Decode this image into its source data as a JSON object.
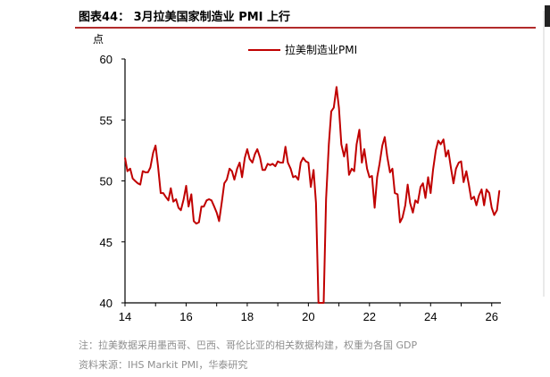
{
  "header": {
    "title": "图表44： 3月拉美国家制造业 PMI 上行"
  },
  "chart_data": {
    "type": "line",
    "ylabel": "点",
    "ylim": [
      40,
      60
    ],
    "yticks": [
      "60",
      "55",
      "50",
      "45",
      "40"
    ],
    "xlim": [
      2014,
      2026.3
    ],
    "xticks": [
      "14",
      "16",
      "18",
      "20",
      "22",
      "24",
      "26"
    ],
    "legend": "top-center",
    "series": [
      {
        "name": "拉美制造业PMI",
        "color": "#c00000",
        "points": [
          [
            2014.0,
            51.9
          ],
          [
            2014.08,
            50.8
          ],
          [
            2014.17,
            51.0
          ],
          [
            2014.25,
            50.2
          ],
          [
            2014.33,
            50.0
          ],
          [
            2014.42,
            49.8
          ],
          [
            2014.5,
            49.7
          ],
          [
            2014.58,
            50.8
          ],
          [
            2014.67,
            50.7
          ],
          [
            2014.75,
            50.7
          ],
          [
            2014.83,
            51.1
          ],
          [
            2014.92,
            52.3
          ],
          [
            2015.0,
            52.9
          ],
          [
            2015.08,
            51.2
          ],
          [
            2015.17,
            49.0
          ],
          [
            2015.25,
            49.0
          ],
          [
            2015.33,
            48.7
          ],
          [
            2015.42,
            48.4
          ],
          [
            2015.5,
            49.4
          ],
          [
            2015.58,
            48.3
          ],
          [
            2015.67,
            48.5
          ],
          [
            2015.75,
            47.8
          ],
          [
            2015.83,
            47.6
          ],
          [
            2015.92,
            48.5
          ],
          [
            2016.0,
            49.6
          ],
          [
            2016.08,
            47.9
          ],
          [
            2016.17,
            48.9
          ],
          [
            2016.25,
            46.7
          ],
          [
            2016.33,
            46.5
          ],
          [
            2016.42,
            46.6
          ],
          [
            2016.5,
            47.9
          ],
          [
            2016.58,
            47.9
          ],
          [
            2016.67,
            48.4
          ],
          [
            2016.75,
            48.5
          ],
          [
            2016.83,
            48.4
          ],
          [
            2016.92,
            47.9
          ],
          [
            2017.0,
            47.4
          ],
          [
            2017.08,
            46.7
          ],
          [
            2017.17,
            48.3
          ],
          [
            2017.25,
            49.8
          ],
          [
            2017.33,
            50.1
          ],
          [
            2017.42,
            51.0
          ],
          [
            2017.5,
            50.8
          ],
          [
            2017.58,
            50.1
          ],
          [
            2017.67,
            51.0
          ],
          [
            2017.75,
            51.5
          ],
          [
            2017.83,
            50.3
          ],
          [
            2017.92,
            51.9
          ],
          [
            2018.0,
            52.6
          ],
          [
            2018.08,
            51.8
          ],
          [
            2018.17,
            51.5
          ],
          [
            2018.25,
            52.2
          ],
          [
            2018.33,
            52.6
          ],
          [
            2018.42,
            51.9
          ],
          [
            2018.5,
            50.9
          ],
          [
            2018.58,
            50.9
          ],
          [
            2018.67,
            51.4
          ],
          [
            2018.75,
            51.3
          ],
          [
            2018.83,
            51.4
          ],
          [
            2018.92,
            51.2
          ],
          [
            2019.0,
            51.6
          ],
          [
            2019.08,
            51.5
          ],
          [
            2019.17,
            51.5
          ],
          [
            2019.25,
            52.8
          ],
          [
            2019.33,
            51.5
          ],
          [
            2019.42,
            51.0
          ],
          [
            2019.5,
            50.3
          ],
          [
            2019.58,
            50.4
          ],
          [
            2019.67,
            50.1
          ],
          [
            2019.75,
            51.5
          ],
          [
            2019.83,
            51.9
          ],
          [
            2019.92,
            51.6
          ],
          [
            2020.0,
            51.5
          ],
          [
            2020.08,
            49.5
          ],
          [
            2020.17,
            50.9
          ],
          [
            2020.25,
            48.2
          ],
          [
            2020.33,
            40.0
          ],
          [
            2020.42,
            40.0
          ],
          [
            2020.5,
            40.0
          ],
          [
            2020.58,
            48.5
          ],
          [
            2020.67,
            53.0
          ],
          [
            2020.75,
            55.7
          ],
          [
            2020.83,
            56.0
          ],
          [
            2020.92,
            57.7
          ],
          [
            2021.0,
            56.0
          ],
          [
            2021.08,
            53.0
          ],
          [
            2021.17,
            52.0
          ],
          [
            2021.25,
            53.0
          ],
          [
            2021.33,
            50.5
          ],
          [
            2021.42,
            51.0
          ],
          [
            2021.5,
            50.8
          ],
          [
            2021.58,
            53.0
          ],
          [
            2021.67,
            54.2
          ],
          [
            2021.75,
            51.5
          ],
          [
            2021.83,
            52.6
          ],
          [
            2021.92,
            51.0
          ],
          [
            2022.0,
            50.3
          ],
          [
            2022.08,
            50.4
          ],
          [
            2022.17,
            47.8
          ],
          [
            2022.25,
            50.3
          ],
          [
            2022.33,
            51.4
          ],
          [
            2022.42,
            52.9
          ],
          [
            2022.5,
            53.6
          ],
          [
            2022.58,
            52.0
          ],
          [
            2022.67,
            50.7
          ],
          [
            2022.75,
            51.0
          ],
          [
            2022.83,
            49.0
          ],
          [
            2022.92,
            48.9
          ],
          [
            2023.0,
            46.6
          ],
          [
            2023.08,
            47.0
          ],
          [
            2023.17,
            48.0
          ],
          [
            2023.25,
            49.7
          ],
          [
            2023.33,
            48.2
          ],
          [
            2023.42,
            47.4
          ],
          [
            2023.5,
            48.4
          ],
          [
            2023.58,
            48.2
          ],
          [
            2023.67,
            49.5
          ],
          [
            2023.75,
            49.8
          ],
          [
            2023.83,
            48.6
          ],
          [
            2023.92,
            50.3
          ],
          [
            2024.0,
            49.0
          ],
          [
            2024.08,
            50.9
          ],
          [
            2024.17,
            52.5
          ],
          [
            2024.25,
            53.3
          ],
          [
            2024.33,
            53.0
          ],
          [
            2024.42,
            53.4
          ],
          [
            2024.5,
            52.0
          ],
          [
            2024.58,
            52.5
          ],
          [
            2024.67,
            51.0
          ],
          [
            2024.75,
            49.8
          ],
          [
            2024.83,
            51.0
          ],
          [
            2024.92,
            51.5
          ],
          [
            2025.0,
            51.6
          ],
          [
            2025.08,
            49.9
          ],
          [
            2025.17,
            50.8
          ],
          [
            2025.25,
            49.7
          ],
          [
            2025.33,
            48.5
          ],
          [
            2025.42,
            48.7
          ],
          [
            2025.5,
            48.0
          ],
          [
            2025.58,
            48.8
          ],
          [
            2025.67,
            49.3
          ],
          [
            2025.75,
            48.0
          ],
          [
            2025.83,
            49.3
          ],
          [
            2025.92,
            49.0
          ],
          [
            2026.0,
            47.8
          ],
          [
            2026.08,
            47.2
          ],
          [
            2026.17,
            47.6
          ],
          [
            2026.25,
            49.2
          ]
        ]
      }
    ]
  },
  "footer": {
    "note": "注：拉美数据采用墨西哥、巴西、哥伦比亚的相关数据构建，权重为各国 GDP",
    "source": "资料来源：IHS Markit PMI，华泰研究"
  }
}
